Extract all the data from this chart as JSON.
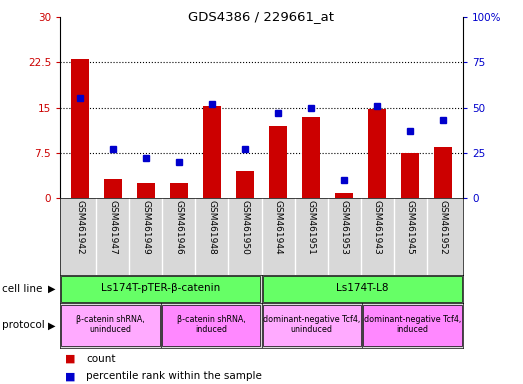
{
  "title": "GDS4386 / 229661_at",
  "samples": [
    "GSM461942",
    "GSM461947",
    "GSM461949",
    "GSM461946",
    "GSM461948",
    "GSM461950",
    "GSM461944",
    "GSM461951",
    "GSM461953",
    "GSM461943",
    "GSM461945",
    "GSM461952"
  ],
  "counts": [
    23.0,
    3.2,
    2.5,
    2.5,
    15.2,
    4.5,
    12.0,
    13.5,
    0.8,
    14.7,
    7.5,
    8.5
  ],
  "percentiles": [
    55,
    27,
    22,
    20,
    52,
    27,
    47,
    50,
    10,
    51,
    37,
    43
  ],
  "ylim_left": [
    0,
    30
  ],
  "ylim_right": [
    0,
    100
  ],
  "yticks_left": [
    0,
    7.5,
    15,
    22.5,
    30
  ],
  "yticks_right": [
    0,
    25,
    50,
    75,
    100
  ],
  "yticklabels_right": [
    "0",
    "25",
    "50",
    "75",
    "100%"
  ],
  "bar_color": "#cc0000",
  "dot_color": "#0000cc",
  "cell_line_groups": [
    {
      "label": "Ls174T-pTER-β-catenin",
      "start": 0,
      "end": 6,
      "color": "#66ff66"
    },
    {
      "label": "Ls174T-L8",
      "start": 6,
      "end": 12,
      "color": "#66ff66"
    }
  ],
  "protocol_groups": [
    {
      "label": "β-catenin shRNA,\nuninduced",
      "start": 0,
      "end": 3,
      "color": "#ffaaff"
    },
    {
      "label": "β-catenin shRNA,\ninduced",
      "start": 3,
      "end": 6,
      "color": "#ff88ff"
    },
    {
      "label": "dominant-negative Tcf4,\nuninduced",
      "start": 6,
      "end": 9,
      "color": "#ffaaff"
    },
    {
      "label": "dominant-negative Tcf4,\ninduced",
      "start": 9,
      "end": 12,
      "color": "#ff88ff"
    }
  ],
  "cell_line_label": "cell line",
  "protocol_label": "protocol",
  "legend_count_label": "count",
  "legend_pct_label": "percentile rank within the sample",
  "bar_width": 0.55,
  "axis_bg": "#d8d8d8",
  "plot_bg": "#ffffff",
  "hgrid_color": "#000000",
  "hgrid_lw": 0.8,
  "hgrid_ls": ":",
  "hgrid_values": [
    7.5,
    15.0,
    22.5
  ]
}
